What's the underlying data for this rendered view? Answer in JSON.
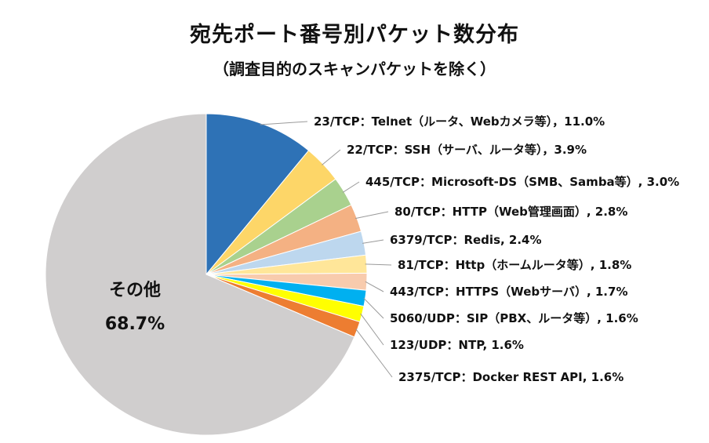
{
  "chart_data": {
    "type": "pie",
    "title": "宛先ポート番号別パケット数分布",
    "subtitle": "（調査目的のスキャンパケットを除く）",
    "slices": [
      {
        "label": "23/TCP：Telnet（ルータ、Webカメラ等），11.0%",
        "value": 11.0,
        "color": "#2e72b6"
      },
      {
        "label": "22/TCP：SSH（サーバ、ルータ等），3.9%",
        "value": 3.9,
        "color": "#fdd668"
      },
      {
        "label": "445/TCP：Microsoft-DS（SMB、Samba等）, 3.0%",
        "value": 3.0,
        "color": "#a9d18e"
      },
      {
        "label": "80/TCP：HTTP（Web管理画面）, 2.8%",
        "value": 2.8,
        "color": "#f4b183"
      },
      {
        "label": "6379/TCP：Redis, 2.4%",
        "value": 2.4,
        "color": "#bdd7ee"
      },
      {
        "label": "81/TCP：Http（ホームルータ等）, 1.8%",
        "value": 1.8,
        "color": "#ffe699"
      },
      {
        "label": "443/TCP：HTTPS（Webサーバ）, 1.7%",
        "value": 1.7,
        "color": "#f8cbad"
      },
      {
        "label": "5060/UDP：SIP（PBX、ルータ等）, 1.6%",
        "value": 1.6,
        "color": "#00b0f0"
      },
      {
        "label": "123/UDP：NTP, 1.6%",
        "value": 1.6,
        "color": "#ffff00"
      },
      {
        "label": "2375/TCP：Docker REST API, 1.6%",
        "value": 1.6,
        "color": "#ed7d31"
      },
      {
        "label": "その他",
        "value": 68.7,
        "color": "#d0cece",
        "value_label": "68.7%"
      }
    ],
    "start_angle_deg": 0,
    "direction": "clockwise"
  }
}
